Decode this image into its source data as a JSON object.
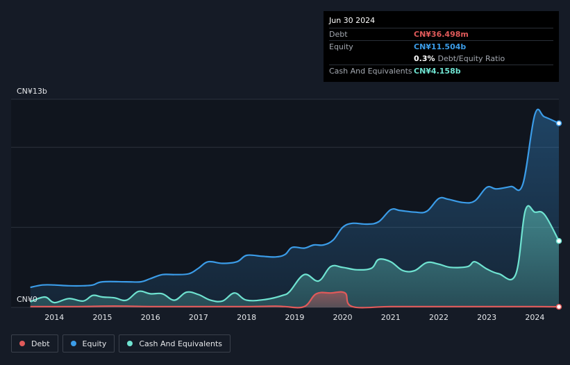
{
  "chart_data": {
    "type": "area",
    "title": "",
    "y_axis": {
      "top_label": "CN¥13b",
      "bottom_label": "CN¥0",
      "min": 0,
      "max": 13
    },
    "x_axis": {
      "min": 2013.25,
      "max": 2024.5,
      "ticks": [
        "2014",
        "2015",
        "2016",
        "2017",
        "2018",
        "2019",
        "2020",
        "2021",
        "2022",
        "2023",
        "2024"
      ]
    },
    "gridlines": [
      0,
      5,
      10
    ],
    "series": [
      {
        "name": "Debt",
        "color": "#e05a5a",
        "points": [
          [
            2013.5,
            0.05
          ],
          [
            2014.5,
            0.05
          ],
          [
            2015,
            0.08
          ],
          [
            2015.5,
            0.08
          ],
          [
            2016,
            0.05
          ],
          [
            2017,
            0.05
          ],
          [
            2018,
            0.05
          ],
          [
            2018.6,
            0.08
          ],
          [
            2018.8,
            0.05
          ],
          [
            2019.2,
            0.05
          ],
          [
            2019.45,
            0.85
          ],
          [
            2019.75,
            0.9
          ],
          [
            2020.05,
            0.9
          ],
          [
            2020.2,
            0.05
          ],
          [
            2021,
            0.05
          ],
          [
            2022,
            0.05
          ],
          [
            2023,
            0.05
          ],
          [
            2024,
            0.05
          ],
          [
            2024.5,
            0.04
          ]
        ]
      },
      {
        "name": "Equity",
        "color": "#3b9ce8",
        "points": [
          [
            2013.5,
            1.25
          ],
          [
            2013.75,
            1.4
          ],
          [
            2014,
            1.4
          ],
          [
            2014.3,
            1.35
          ],
          [
            2014.6,
            1.35
          ],
          [
            2014.8,
            1.4
          ],
          [
            2015,
            1.6
          ],
          [
            2015.5,
            1.6
          ],
          [
            2015.8,
            1.6
          ],
          [
            2016,
            1.8
          ],
          [
            2016.25,
            2.05
          ],
          [
            2016.5,
            2.05
          ],
          [
            2016.8,
            2.1
          ],
          [
            2017,
            2.45
          ],
          [
            2017.2,
            2.85
          ],
          [
            2017.5,
            2.75
          ],
          [
            2017.8,
            2.85
          ],
          [
            2018,
            3.25
          ],
          [
            2018.3,
            3.2
          ],
          [
            2018.6,
            3.15
          ],
          [
            2018.8,
            3.3
          ],
          [
            2018.95,
            3.75
          ],
          [
            2019.2,
            3.7
          ],
          [
            2019.4,
            3.9
          ],
          [
            2019.6,
            3.9
          ],
          [
            2019.8,
            4.2
          ],
          [
            2020,
            5.0
          ],
          [
            2020.2,
            5.25
          ],
          [
            2020.5,
            5.2
          ],
          [
            2020.75,
            5.35
          ],
          [
            2021,
            6.1
          ],
          [
            2021.2,
            6.05
          ],
          [
            2021.5,
            5.95
          ],
          [
            2021.75,
            6.0
          ],
          [
            2022,
            6.8
          ],
          [
            2022.2,
            6.75
          ],
          [
            2022.5,
            6.55
          ],
          [
            2022.75,
            6.65
          ],
          [
            2023,
            7.5
          ],
          [
            2023.2,
            7.4
          ],
          [
            2023.5,
            7.55
          ],
          [
            2023.75,
            7.7
          ],
          [
            2024,
            12.05
          ],
          [
            2024.2,
            11.9
          ],
          [
            2024.5,
            11.5
          ]
        ]
      },
      {
        "name": "Cash And Equivalents",
        "color": "#6fe3d1",
        "points": [
          [
            2013.5,
            0.35
          ],
          [
            2013.8,
            0.65
          ],
          [
            2014,
            0.3
          ],
          [
            2014.3,
            0.55
          ],
          [
            2014.6,
            0.4
          ],
          [
            2014.8,
            0.75
          ],
          [
            2015,
            0.65
          ],
          [
            2015.25,
            0.6
          ],
          [
            2015.5,
            0.45
          ],
          [
            2015.75,
            1.0
          ],
          [
            2016,
            0.85
          ],
          [
            2016.25,
            0.85
          ],
          [
            2016.5,
            0.45
          ],
          [
            2016.75,
            0.95
          ],
          [
            2017,
            0.8
          ],
          [
            2017.25,
            0.45
          ],
          [
            2017.5,
            0.4
          ],
          [
            2017.75,
            0.9
          ],
          [
            2018,
            0.45
          ],
          [
            2018.4,
            0.5
          ],
          [
            2018.75,
            0.75
          ],
          [
            2018.9,
            1.0
          ],
          [
            2019.2,
            2.05
          ],
          [
            2019.5,
            1.65
          ],
          [
            2019.75,
            2.55
          ],
          [
            2020,
            2.5
          ],
          [
            2020.3,
            2.35
          ],
          [
            2020.6,
            2.45
          ],
          [
            2020.75,
            3.0
          ],
          [
            2021,
            2.85
          ],
          [
            2021.25,
            2.3
          ],
          [
            2021.5,
            2.3
          ],
          [
            2021.75,
            2.8
          ],
          [
            2022,
            2.7
          ],
          [
            2022.25,
            2.5
          ],
          [
            2022.6,
            2.55
          ],
          [
            2022.75,
            2.85
          ],
          [
            2023,
            2.4
          ],
          [
            2023.25,
            2.1
          ],
          [
            2023.6,
            2.05
          ],
          [
            2023.8,
            6.05
          ],
          [
            2024,
            5.95
          ],
          [
            2024.2,
            5.8
          ],
          [
            2024.5,
            4.15
          ]
        ]
      }
    ],
    "tooltip": {
      "date": "Jun 30 2024",
      "rows": [
        {
          "label": "Debt",
          "value": "CN¥36.498m",
          "color": "#e05a5a"
        },
        {
          "label": "Equity",
          "value": "CN¥11.504b",
          "color": "#3b9ce8"
        },
        {
          "label": "",
          "value": "0.3%",
          "suffix": "Debt/Equity Ratio",
          "color": "#ffffff"
        },
        {
          "label": "Cash And Equivalents",
          "value": "CN¥4.158b",
          "color": "#6fe3d1"
        }
      ]
    },
    "legend": [
      "Debt",
      "Equity",
      "Cash And Equivalents"
    ]
  },
  "colors": {
    "background": "#151b26",
    "debt": "#e05a5a",
    "equity": "#3b9ce8",
    "cash": "#6fe3d1"
  }
}
